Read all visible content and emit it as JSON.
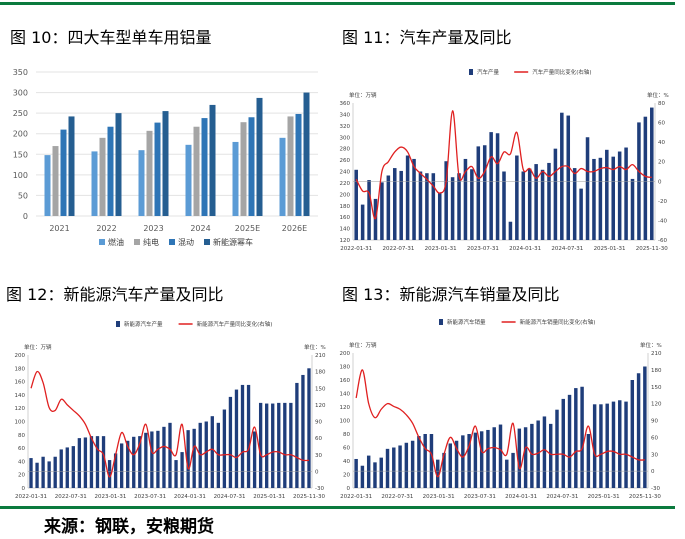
{
  "colors": {
    "rule": "#0b7a3e",
    "bar_navy": "#1f3d7a",
    "line_red": "#e02020",
    "fuel": "#5b9bd5",
    "ev": "#a5a5a5",
    "hybrid": "#2e75b6",
    "nev": "#255e91"
  },
  "source_text": "来源：钢联，安粮期货",
  "charts": [
    {
      "title": "图 10：四大车型单车用铝量",
      "type": "bar",
      "categories": [
        "2021",
        "2022",
        "2023",
        "2024",
        "2025E",
        "2026E"
      ],
      "series": [
        {
          "name": "燃油",
          "color": "#5b9bd5",
          "values": [
            148,
            157,
            160,
            173,
            180,
            190
          ]
        },
        {
          "name": "纯电",
          "color": "#a5a5a5",
          "values": [
            170,
            190,
            207,
            217,
            228,
            242
          ]
        },
        {
          "name": "混动",
          "color": "#2e75b6",
          "values": [
            210,
            217,
            227,
            238,
            240,
            248
          ]
        },
        {
          "name": "新能源幂车",
          "color": "#255e91",
          "values": [
            242,
            250,
            255,
            270,
            287,
            300
          ]
        }
      ],
      "ylim": [
        0,
        350
      ],
      "yticks": [
        0,
        50,
        100,
        150,
        200,
        250,
        300,
        350
      ],
      "legend": "bottom"
    },
    {
      "title": "图 11：汽车产量及同比",
      "type": "bar+line",
      "unit_left": "单位：万辆",
      "unit_right": "单位：%",
      "bar_name": "汽车产量",
      "line_name": "汽车产量同比变化(右轴)",
      "x_labels": [
        "2022-01-31",
        "2022-07-31",
        "2023-01-31",
        "2023-07-31",
        "2024-01-31",
        "2024-07-31",
        "2025-01-31",
        "2025-11-30"
      ],
      "bar_values": [
        243,
        182,
        225,
        192,
        221,
        233,
        246,
        241,
        268,
        262,
        240,
        237,
        237,
        202,
        258,
        230,
        237,
        262,
        244,
        284,
        286,
        309,
        307,
        240,
        152,
        268,
        240,
        245,
        253,
        243,
        255,
        280,
        343,
        338,
        246,
        210,
        300,
        262,
        264,
        278,
        266,
        275,
        282,
        227,
        326,
        336,
        352
      ],
      "line_values": [
        2,
        -10,
        -12,
        -38,
        10,
        20,
        30,
        35,
        30,
        15,
        8,
        2,
        -5,
        -12,
        0,
        72,
        5,
        10,
        15,
        3,
        10,
        25,
        18,
        30,
        28,
        50,
        12,
        13,
        3,
        10,
        5,
        10,
        15,
        15,
        8,
        13,
        10,
        10,
        13,
        14,
        12,
        15,
        12,
        17,
        10,
        5,
        4
      ],
      "left_ylim": [
        120,
        360
      ],
      "left_ticks": [
        120,
        140,
        160,
        180,
        200,
        220,
        240,
        260,
        280,
        300,
        320,
        340,
        360
      ],
      "right_ylim": [
        -60,
        80
      ],
      "right_ticks": [
        -60,
        -40,
        -20,
        0,
        20,
        40,
        60,
        80
      ],
      "legend": "top"
    },
    {
      "title": "图 12：新能源汽车产量及同比",
      "type": "bar+line",
      "unit_left": "单位：万辆",
      "unit_right": "单位：%",
      "bar_name": "新能源汽车产量",
      "line_name": "新能源汽车产量同比变化(右轴)",
      "x_labels": [
        "2022-01-31",
        "2022-07-31",
        "2023-01-31",
        "2023-07-31",
        "2024-01-31",
        "2024-07-31",
        "2025-01-31",
        "2025-11-30"
      ],
      "bar_values": [
        45,
        38,
        47,
        40,
        47,
        58,
        61,
        63,
        75,
        76,
        78,
        78,
        78,
        42,
        52,
        67,
        71,
        77,
        78,
        83,
        85,
        86,
        92,
        98,
        42,
        54,
        87,
        89,
        98,
        100,
        108,
        98,
        118,
        137,
        148,
        155,
        155,
        85,
        128,
        127,
        127,
        128,
        128,
        128,
        158,
        170,
        180
      ],
      "line_values": [
        150,
        180,
        160,
        115,
        110,
        130,
        120,
        110,
        100,
        85,
        60,
        40,
        30,
        -10,
        30,
        70,
        45,
        30,
        50,
        85,
        35,
        40,
        45,
        40,
        30,
        85,
        5,
        45,
        30,
        35,
        40,
        30,
        30,
        30,
        25,
        35,
        40,
        80,
        30,
        30,
        35,
        35,
        30,
        30,
        25,
        20,
        20
      ],
      "left_ylim": [
        0,
        200
      ],
      "left_ticks": [
        0,
        20,
        40,
        60,
        80,
        100,
        120,
        140,
        160,
        180,
        200
      ],
      "right_ylim": [
        -30,
        210
      ],
      "right_ticks": [
        -30,
        0,
        30,
        60,
        90,
        120,
        150,
        180,
        210
      ],
      "legend": "top"
    },
    {
      "title": "图 13：新能源汽车销量及同比",
      "type": "bar+line",
      "unit_left": "单位：万辆",
      "unit_right": "单位：%",
      "bar_name": "新能源汽车销量",
      "line_name": "新能源汽车销量同比变化(右轴)",
      "x_labels": [
        "2022-01-31",
        "2022-07-31",
        "2023-01-31",
        "2023-07-31",
        "2024-01-31",
        "2024-07-31",
        "2025-01-31",
        "2025-11-30"
      ],
      "bar_values": [
        43,
        33,
        48,
        38,
        45,
        58,
        60,
        63,
        67,
        70,
        77,
        80,
        80,
        42,
        52,
        66,
        70,
        78,
        80,
        82,
        84,
        86,
        90,
        94,
        42,
        52,
        88,
        90,
        95,
        100,
        106,
        95,
        116,
        132,
        138,
        148,
        150,
        80,
        124,
        124,
        125,
        128,
        130,
        128,
        160,
        170,
        180
      ],
      "line_values": [
        130,
        180,
        120,
        95,
        110,
        120,
        115,
        110,
        100,
        85,
        60,
        40,
        30,
        -10,
        30,
        60,
        40,
        25,
        45,
        80,
        35,
        40,
        42,
        38,
        30,
        85,
        5,
        42,
        30,
        32,
        38,
        30,
        30,
        30,
        25,
        35,
        40,
        80,
        30,
        30,
        35,
        35,
        30,
        30,
        25,
        20,
        20
      ],
      "left_ylim": [
        0,
        200
      ],
      "left_ticks": [
        0,
        20,
        40,
        60,
        80,
        100,
        120,
        140,
        160,
        180,
        200
      ],
      "right_ylim": [
        -30,
        210
      ],
      "right_ticks": [
        -30,
        0,
        30,
        60,
        90,
        120,
        150,
        180,
        210
      ],
      "legend": "top"
    }
  ]
}
